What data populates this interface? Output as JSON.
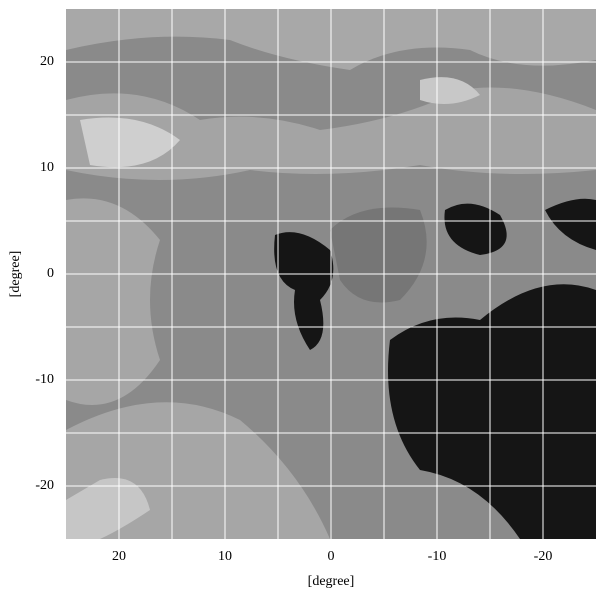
{
  "chart_data": {
    "type": "map",
    "xlabel": "[degree]",
    "ylabel": "[degree]",
    "xlim": [
      25,
      -25
    ],
    "ylim": [
      -25,
      25
    ],
    "xticks": [
      20,
      10,
      0,
      -10,
      -20
    ],
    "yticks": [
      20,
      10,
      0,
      -10,
      -20
    ],
    "xminor": [
      15,
      5,
      -5,
      -15
    ],
    "yminor": [
      15,
      5,
      -5,
      -15
    ],
    "grid": true,
    "grid_color": "#ffffff"
  }
}
